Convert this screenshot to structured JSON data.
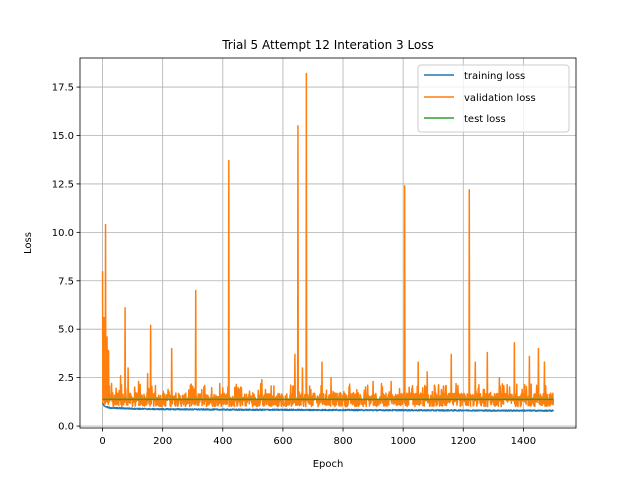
{
  "chart_data": {
    "type": "line",
    "title": "Trial 5 Attempt 12 Interation 3 Loss",
    "xlabel": "Epoch",
    "ylabel": "Loss",
    "xlim": [
      -75,
      1575
    ],
    "ylim": [
      -0.1,
      19.0
    ],
    "xticks": [
      0,
      200,
      400,
      600,
      800,
      1000,
      1200,
      1400
    ],
    "yticks": [
      0.0,
      2.5,
      5.0,
      7.5,
      10.0,
      12.5,
      15.0,
      17.5
    ],
    "ytick_labels": [
      "0.0",
      "2.5",
      "5.0",
      "7.5",
      "10.0",
      "12.5",
      "15.0",
      "17.5"
    ],
    "grid": true,
    "legend_position": "top-right",
    "series": [
      {
        "name": "training loss",
        "color": "#1f77b4",
        "x": [
          0,
          5,
          10,
          20,
          40,
          60,
          100,
          150,
          200,
          300,
          400,
          500,
          600,
          700,
          800,
          900,
          1000,
          1100,
          1200,
          1300,
          1400,
          1500
        ],
        "y": [
          1.2,
          1.05,
          1.0,
          0.95,
          0.93,
          0.92,
          0.9,
          0.88,
          0.87,
          0.86,
          0.85,
          0.84,
          0.84,
          0.83,
          0.83,
          0.82,
          0.82,
          0.81,
          0.81,
          0.8,
          0.8,
          0.79
        ]
      },
      {
        "name": "validation loss",
        "color": "#ff7f0e",
        "baseline": 1.35,
        "spikes": [
          [
            0,
            8.0
          ],
          [
            5,
            5.6
          ],
          [
            10,
            10.4
          ],
          [
            15,
            4.6
          ],
          [
            20,
            3.9
          ],
          [
            30,
            2.2
          ],
          [
            60,
            2.6
          ],
          [
            75,
            6.1
          ],
          [
            85,
            3.0
          ],
          [
            120,
            2.3
          ],
          [
            150,
            2.7
          ],
          [
            160,
            5.2
          ],
          [
            230,
            4.0
          ],
          [
            310,
            7.0
          ],
          [
            340,
            2.1
          ],
          [
            390,
            2.2
          ],
          [
            420,
            13.7
          ],
          [
            440,
            2.0
          ],
          [
            530,
            2.4
          ],
          [
            640,
            3.7
          ],
          [
            650,
            15.5
          ],
          [
            665,
            3.0
          ],
          [
            678,
            18.2
          ],
          [
            730,
            3.3
          ],
          [
            760,
            2.5
          ],
          [
            900,
            2.3
          ],
          [
            960,
            2.3
          ],
          [
            1005,
            12.4
          ],
          [
            1050,
            3.3
          ],
          [
            1080,
            2.8
          ],
          [
            1160,
            3.7
          ],
          [
            1220,
            12.2
          ],
          [
            1240,
            3.3
          ],
          [
            1280,
            3.8
          ],
          [
            1320,
            2.5
          ],
          [
            1370,
            4.3
          ],
          [
            1420,
            3.6
          ],
          [
            1450,
            4.0
          ],
          [
            1470,
            3.3
          ]
        ]
      },
      {
        "name": "test loss",
        "color": "#2ca02c",
        "x": [
          0,
          1500
        ],
        "y": [
          1.38,
          1.38
        ]
      }
    ]
  }
}
